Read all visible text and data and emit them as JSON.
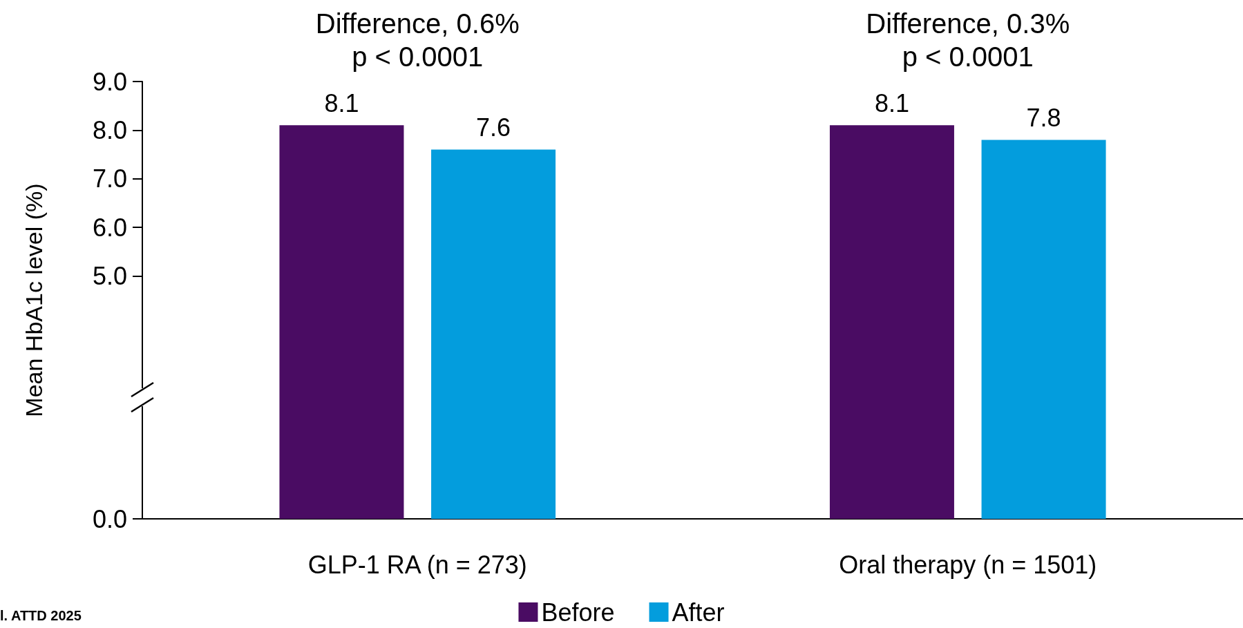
{
  "chart_data": {
    "type": "bar",
    "ylabel": "Mean HbA1c level (%)",
    "categories": [
      "GLP-1 RA (n = 273)",
      "Oral therapy (n = 1501)"
    ],
    "series": [
      {
        "name": "Before",
        "color": "#4a0c63",
        "values": [
          8.1,
          8.1
        ]
      },
      {
        "name": "After",
        "color": "#039ddd",
        "values": [
          7.6,
          7.8
        ]
      }
    ],
    "ylim": [
      0,
      9
    ],
    "yticks": [
      {
        "value": 0,
        "label": "0.0"
      },
      {
        "value": 5,
        "label": "5.0"
      },
      {
        "value": 6,
        "label": "6.0"
      },
      {
        "value": 7,
        "label": "7.0"
      },
      {
        "value": 8,
        "label": "8.0"
      },
      {
        "value": 9,
        "label": "9.0"
      }
    ],
    "data_labels": true,
    "grid": false,
    "legend": "bottom",
    "annotations": [
      "Difference, 0.6%\np < 0.0001",
      "Difference, 0.3%\np < 0.0001",
      "l. ATTD 2025"
    ]
  }
}
